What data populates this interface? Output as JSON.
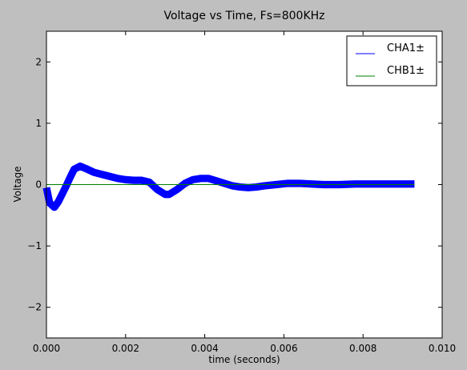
{
  "chart_data": {
    "type": "line",
    "title": "Voltage vs Time, Fs=800KHz",
    "xlabel": "time (seconds)",
    "ylabel": "Voltage",
    "xlim": [
      0.0,
      0.01
    ],
    "ylim": [
      -2.5,
      2.5
    ],
    "x_ticks": [
      0.0,
      0.002,
      0.004,
      0.006,
      0.008,
      0.01
    ],
    "x_tick_labels": [
      "0.000",
      "0.002",
      "0.004",
      "0.006",
      "0.008",
      "0.010"
    ],
    "y_ticks": [
      -2,
      -1,
      0,
      1,
      2
    ],
    "y_tick_labels": [
      "−2",
      "−1",
      "0",
      "1",
      "2"
    ],
    "grid": false,
    "legend_position": "top-right",
    "series": [
      {
        "name": "CHA1±",
        "color": "#0000ff",
        "noise_band": 0.06,
        "x": [
          0.0,
          8e-05,
          0.0002,
          0.0003,
          0.0004,
          0.0005,
          0.0006,
          0.0007,
          0.00085,
          0.001,
          0.0012,
          0.0015,
          0.0018,
          0.002,
          0.0022,
          0.0024,
          0.0026,
          0.0028,
          0.003,
          0.0031,
          0.0033,
          0.0035,
          0.0037,
          0.0039,
          0.0041,
          0.0043,
          0.0045,
          0.0047,
          0.0049,
          0.0051,
          0.0053,
          0.0055,
          0.0058,
          0.0061,
          0.0064,
          0.0067,
          0.007,
          0.0074,
          0.0078,
          0.0082,
          0.0086,
          0.009,
          0.0093
        ],
        "y": [
          -0.05,
          -0.3,
          -0.37,
          -0.28,
          -0.15,
          -0.02,
          0.12,
          0.25,
          0.3,
          0.26,
          0.2,
          0.15,
          0.1,
          0.08,
          0.07,
          0.07,
          0.04,
          -0.08,
          -0.16,
          -0.16,
          -0.08,
          0.02,
          0.08,
          0.1,
          0.1,
          0.06,
          0.02,
          -0.02,
          -0.04,
          -0.05,
          -0.04,
          -0.02,
          0.0,
          0.02,
          0.02,
          0.01,
          0.0,
          0.0,
          0.01,
          0.01,
          0.01,
          0.01,
          0.01
        ]
      },
      {
        "name": "CHB1±",
        "color": "#008000",
        "noise_band": 0.0,
        "x": [
          0.0,
          0.0093
        ],
        "y": [
          0.0,
          0.0
        ]
      }
    ]
  }
}
